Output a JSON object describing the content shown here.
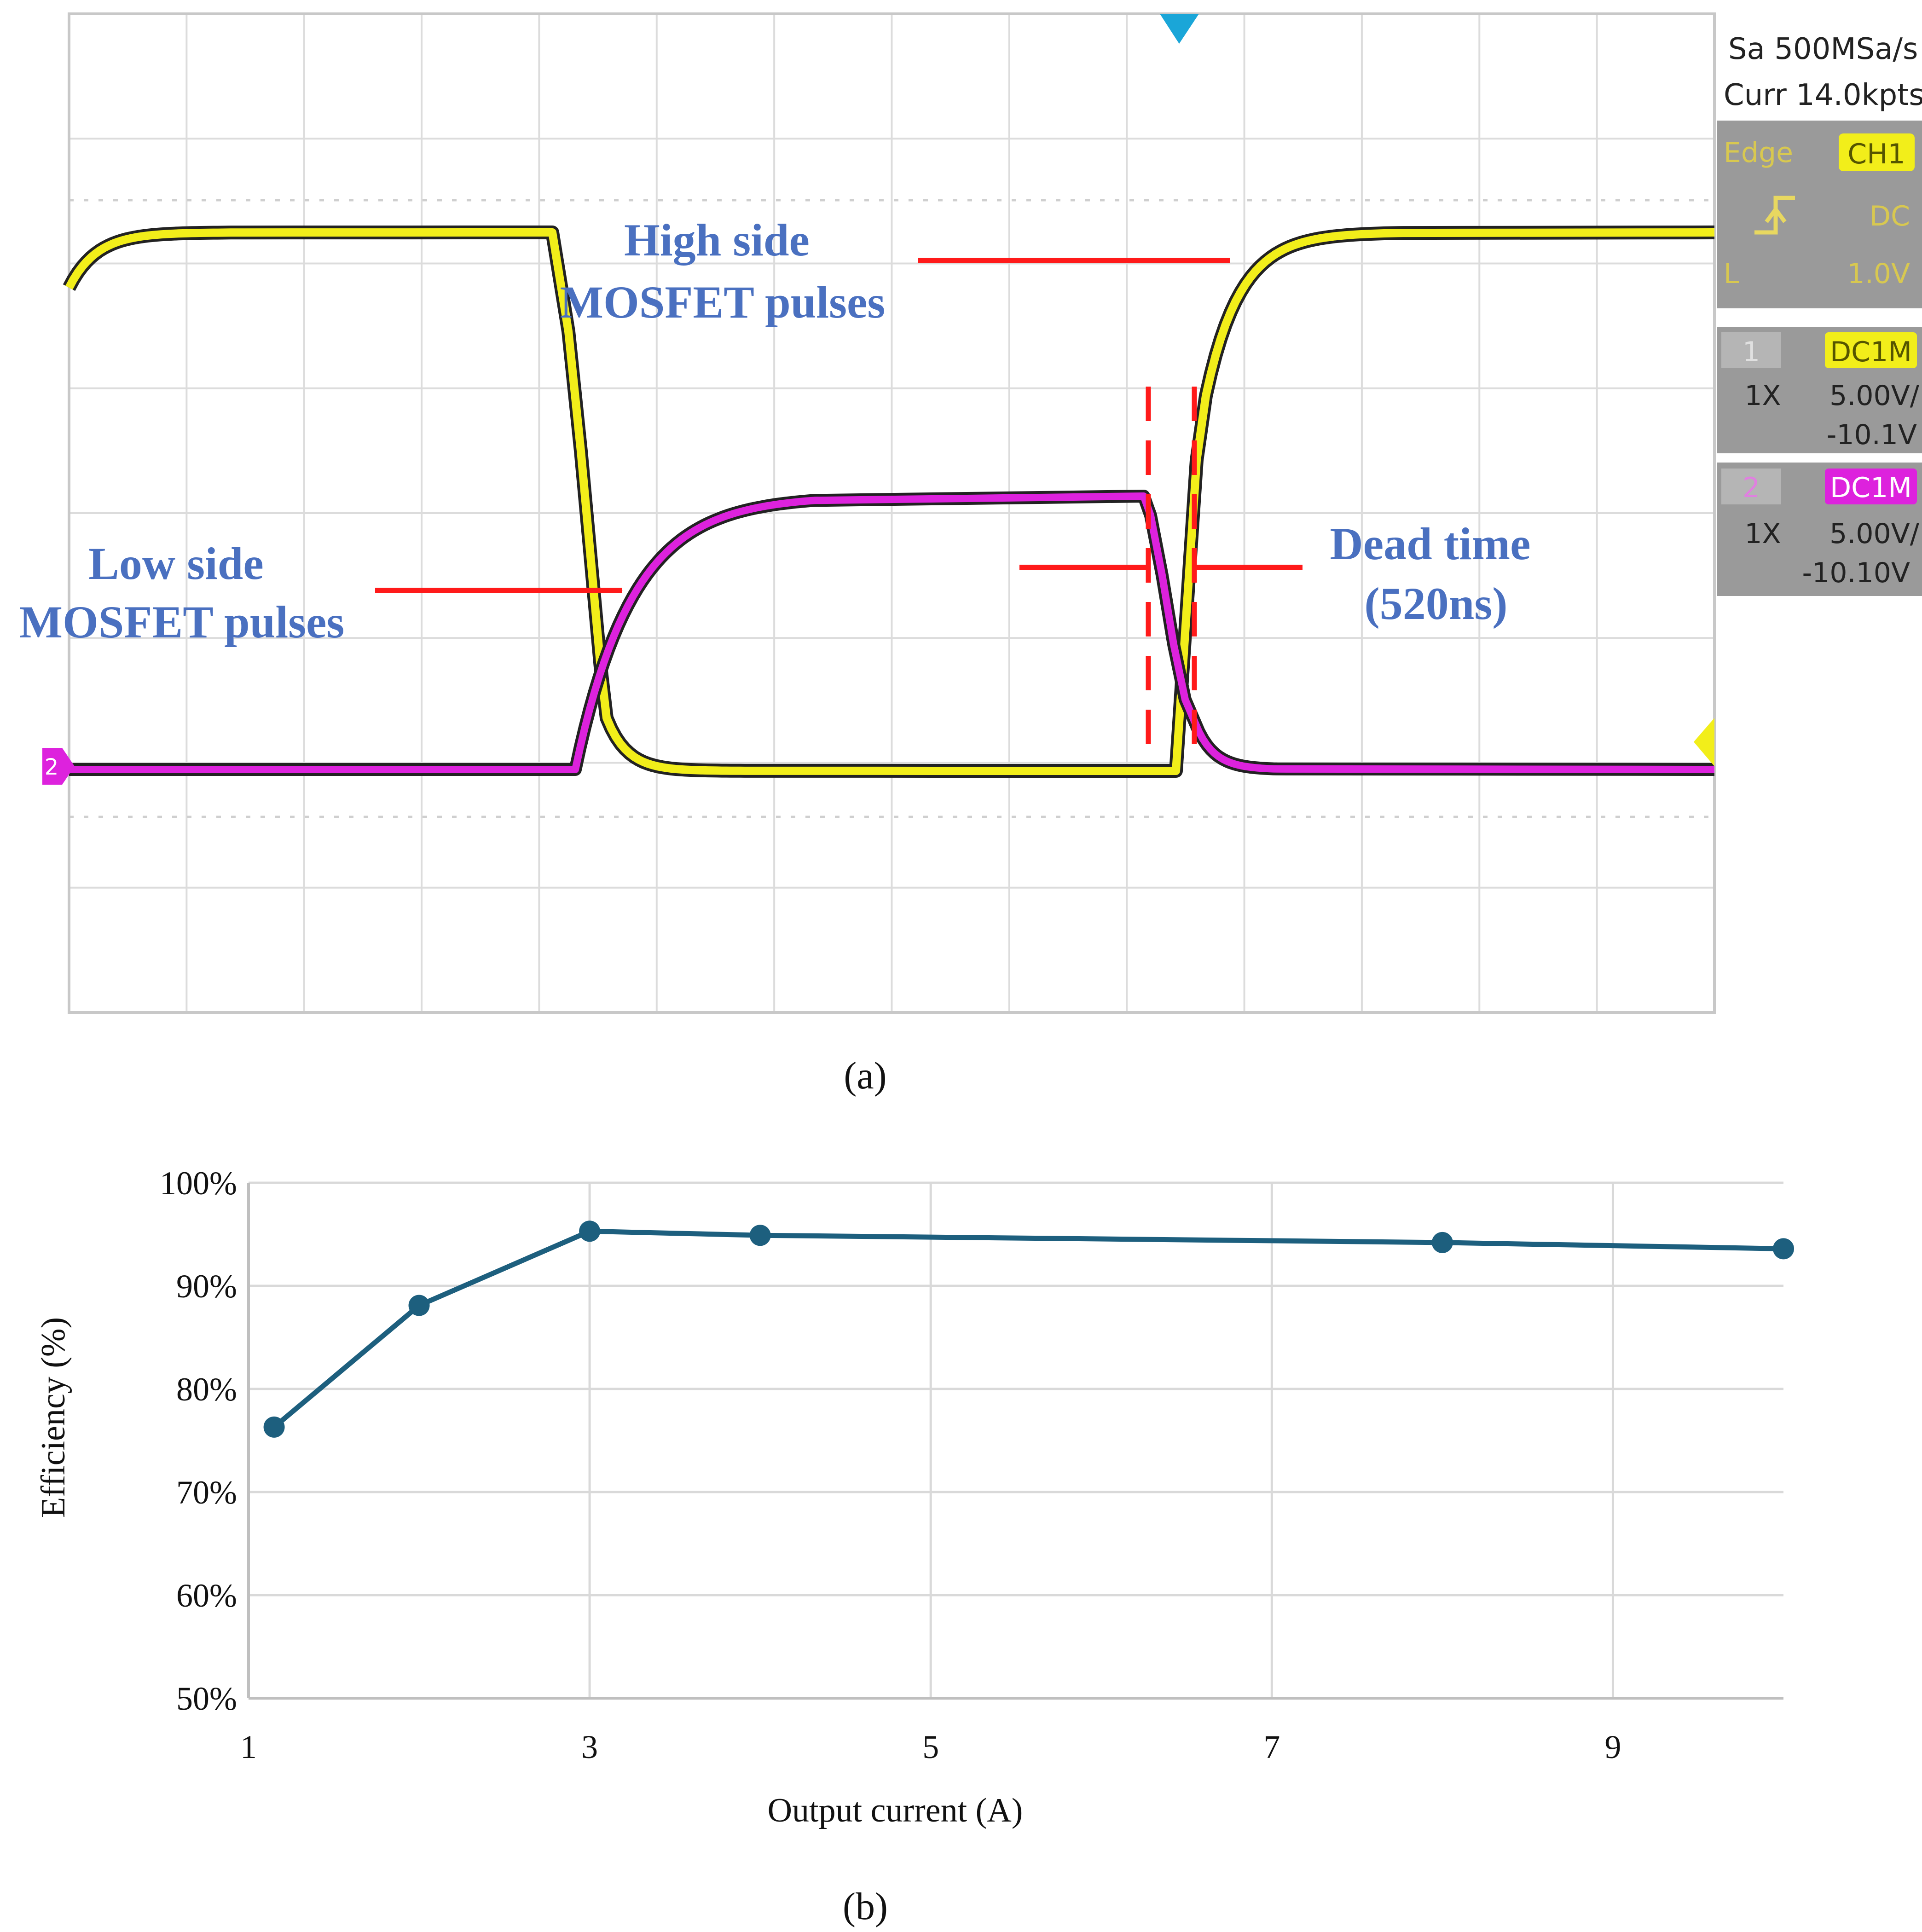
{
  "colors": {
    "ch1": "#f2ee1a",
    "ch2": "#dd22dd",
    "annotation_text": "#4a70c0",
    "arrow": "#ff1a1a",
    "efficiency_line": "#1d5f7e",
    "grid_scope": "#d8d8d8",
    "panel_bg": "#9a9a9a",
    "trigger_marker": "#1aa6d8"
  },
  "panel_a": {
    "caption": "(a)",
    "status": {
      "sample_rate": "Sa 500MSa/s",
      "memory": "Curr 14.0kpts"
    },
    "trigger": {
      "mode": "Edge",
      "source": "CH1",
      "coupling": "DC",
      "level_label": "L",
      "level": "1.0V",
      "slope_icon": "rising-edge-icon"
    },
    "channels": [
      {
        "number": "1",
        "coupling": "DC1M",
        "probe": "1X",
        "scale": "5.00V/",
        "offset": "-10.1V"
      },
      {
        "number": "2",
        "coupling": "DC1M",
        "probe": "1X",
        "scale": "5.00V/",
        "offset": "-10.10V"
      }
    ],
    "channel_marker_label": "2",
    "annotations": {
      "high_side": [
        "High side",
        "MOSFET pulses"
      ],
      "low_side": [
        "Low side",
        "MOSFET pulses"
      ],
      "dead_time": [
        "Dead time",
        "(520ns)"
      ]
    }
  },
  "panel_b": {
    "caption": "(b)"
  },
  "chart_data": {
    "type": "line",
    "title": "",
    "xlabel": "Output current (A)",
    "ylabel": "Efficiency (%)",
    "xlim": [
      1,
      10
    ],
    "ylim": [
      50,
      100
    ],
    "x_ticks": [
      1,
      3,
      5,
      7,
      9
    ],
    "y_ticks": [
      "50%",
      "60%",
      "70%",
      "80%",
      "90%",
      "100%"
    ],
    "y_tick_values": [
      50,
      60,
      70,
      80,
      90,
      100
    ],
    "grid": true,
    "legend": "none",
    "series": [
      {
        "x": [
          1.15,
          2,
          3,
          4,
          8,
          10
        ],
        "y": [
          76.3,
          88.1,
          95.3,
          94.9,
          94.2,
          93.6
        ]
      }
    ]
  }
}
